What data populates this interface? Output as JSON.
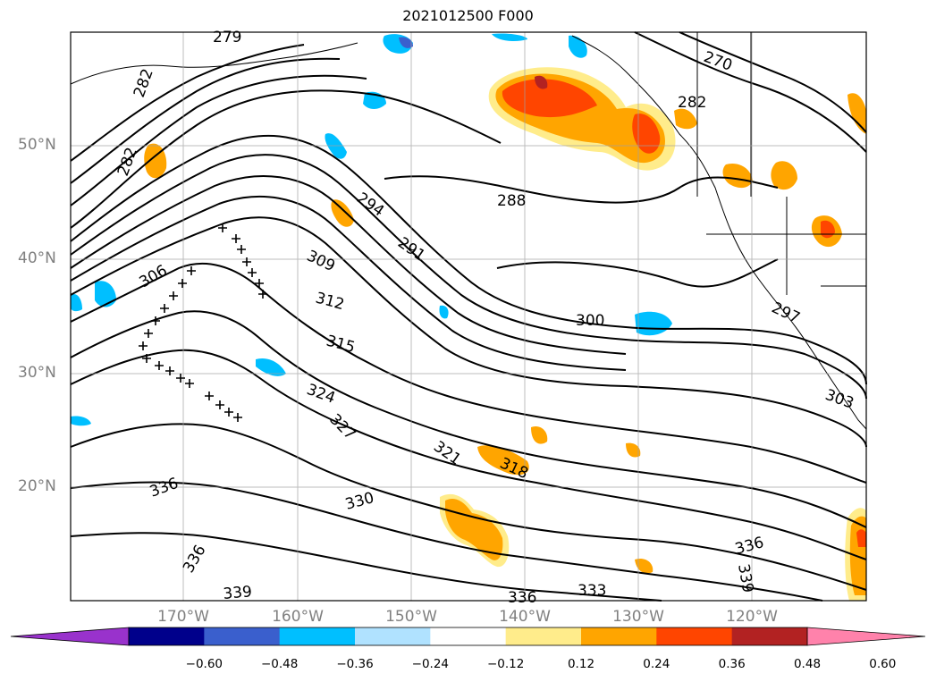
{
  "title": "2021012500 F000",
  "latitude_labels": [
    "50°N",
    "40°N",
    "30°N",
    "20°N"
  ],
  "longitude_labels": [
    "170°W",
    "160°W",
    "150°W",
    "140°W",
    "130°W",
    "120°W"
  ],
  "contour_labels": [
    "279",
    "270",
    "282",
    "282",
    "282",
    "288",
    "294",
    "291",
    "309",
    "306",
    "312",
    "300",
    "297",
    "315",
    "324",
    "327",
    "303",
    "321",
    "318",
    "336",
    "330",
    "336",
    "336",
    "339",
    "339",
    "336",
    "333"
  ],
  "colorbar": {
    "ticks": [
      "−0.60",
      "−0.48",
      "−0.36",
      "−0.24",
      "−0.12",
      "0.12",
      "0.24",
      "0.36",
      "0.48",
      "0.60"
    ],
    "colors": [
      "#9932cc",
      "#00008b",
      "#3a5fcd",
      "#00bfff",
      "#b0e2ff",
      "#ffffff",
      "#ffec8b",
      "#ffa500",
      "#ff4500",
      "#b22222",
      "#ff82ab"
    ]
  }
}
